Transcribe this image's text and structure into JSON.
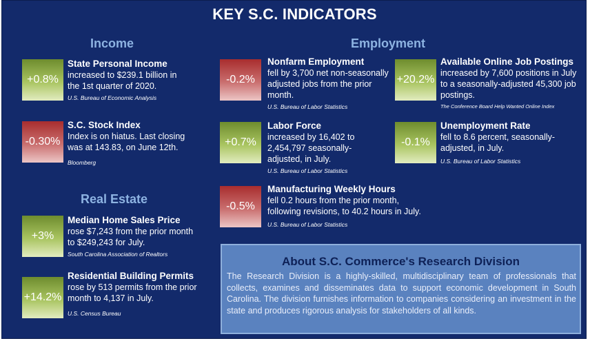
{
  "title": "KEY S.C. INDICATORS",
  "sections": {
    "income": "Income",
    "employment": "Employment",
    "real_estate": "Real Estate"
  },
  "indicators": {
    "personal_income": {
      "badge": "+0.8%",
      "title": "State Personal Income",
      "text": "increased to $239.1 billion in the 1st quarter of 2020.",
      "source": "U.S. Bureau of Economic Analysis"
    },
    "stock_index": {
      "badge": "-0.30%",
      "title": "S.C. Stock Index",
      "text": "Index is on hiatus. Last closing was at 143.83, on June 12th.",
      "source": "Bloomberg"
    },
    "home_sales": {
      "badge": "+3%",
      "title": "Median Home Sales Price",
      "text": "rose $7,243 from the prior month to $249,243 for July.",
      "source": "South Carolina Association of Realtors"
    },
    "building_permits": {
      "badge": "+14.2%",
      "title": "Residential Building Permits",
      "text": "rose by 513 permits from the prior month to 4,137 in July.",
      "source": "U.S. Census Bureau"
    },
    "nonfarm": {
      "badge": "-0.2%",
      "title": "Nonfarm Employment",
      "text": "fell by 3,700 net non-seasonally adjusted jobs from the prior month.",
      "source": "U.S. Bureau of Labor Statistics"
    },
    "job_postings": {
      "badge": "+20.2%",
      "title": "Available Online Job Postings",
      "text": "increased by 7,600 positions in July to a seasonally-adjusted 45,300 job postings.",
      "source": "The Conference Board Help Wanted Online Index"
    },
    "labor_force": {
      "badge": "+0.7%",
      "title": "Labor Force",
      "text": "increased by 16,402 to 2,454,797 seasonally-adjusted, in July.",
      "source": "U.S. Bureau of Labor Statistics"
    },
    "unemployment": {
      "badge": "-0.1%",
      "title": "Unemployment Rate",
      "text": "fell to 8.6 percent, seasonally-adjusted, in July.",
      "source": "U.S. Bureau of Labor Statistics"
    },
    "manufacturing": {
      "badge": "-0.5%",
      "title": "Manufacturing Weekly Hours",
      "text": "fell 0.2 hours from the prior month, following revisions, to 40.2 hours in July.",
      "source": "U.S. Bureau of Labor Statistics"
    }
  },
  "about": {
    "title": "About S.C. Commerce's Research Division",
    "text": "The Research Division is a highly-skilled, multidisciplinary team of professionals that collects, examines and disseminates data to support economic development in South Carolina. The division furnishes information to companies considering an investment in the state and produces rigorous analysis for stakeholders of all kinds."
  },
  "colors": {
    "background": "#132a6b",
    "positive": "#a9c460",
    "negative": "#c96e6e",
    "section_title": "#8db3e2",
    "about_panel": "#5a82bf"
  }
}
